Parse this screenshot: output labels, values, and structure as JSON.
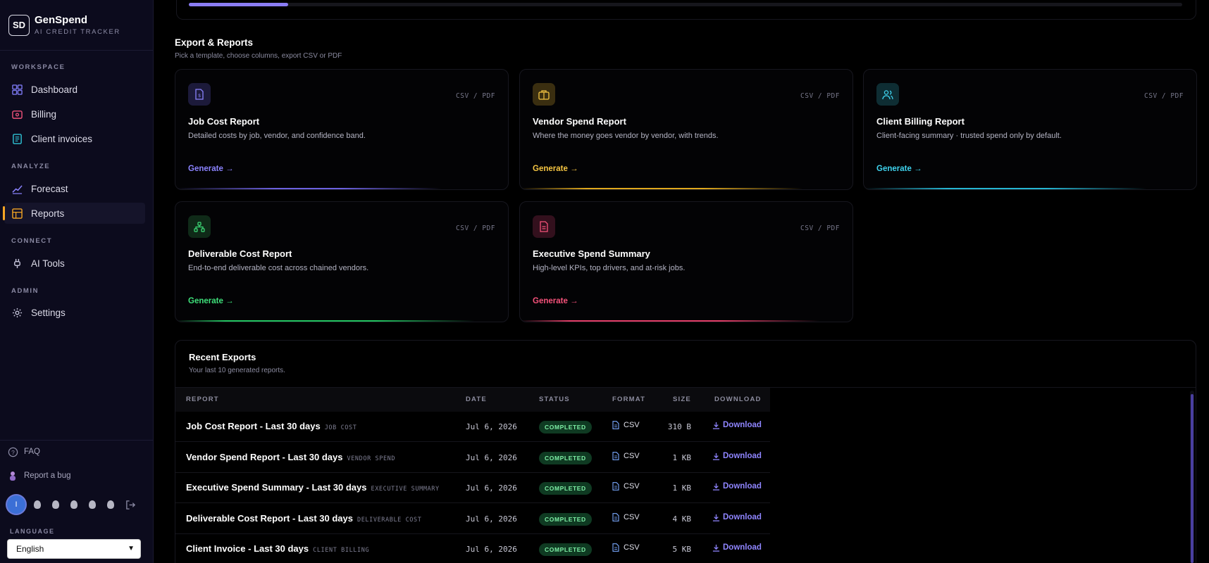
{
  "brand": {
    "logo": "SD",
    "name": "GenSpend",
    "tagline": "AI CREDIT TRACKER"
  },
  "sidebar": {
    "sections": [
      {
        "label": "WORKSPACE"
      },
      {
        "label": "ANALYZE"
      },
      {
        "label": "CONNECT"
      },
      {
        "label": "ADMIN"
      }
    ],
    "items": [
      {
        "label": "Dashboard",
        "icon": "grid-icon"
      },
      {
        "label": "Billing",
        "icon": "wallet-icon"
      },
      {
        "label": "Client invoices",
        "icon": "invoice-icon"
      },
      {
        "label": "Forecast",
        "icon": "trend-icon"
      },
      {
        "label": "Reports",
        "icon": "reports-icon",
        "active": true
      },
      {
        "label": "AI Tools",
        "icon": "plug-icon"
      },
      {
        "label": "Settings",
        "icon": "gear-icon"
      }
    ],
    "footer": {
      "faq": "FAQ",
      "bug": "Report a bug",
      "avatar_initial": "I",
      "language_label": "LANGUAGE",
      "language_value": "English"
    }
  },
  "top_progress": {
    "fraction": 0.1
  },
  "export_section": {
    "title": "Export & Reports",
    "subtitle": "Pick a template, choose columns, export CSV or PDF",
    "cards": [
      {
        "title": "Job Cost Report",
        "format": "CSV / PDF",
        "desc": "Detailed costs by job, vendor, and confidence band.",
        "action": "Generate",
        "accent": "#8b83ff"
      },
      {
        "title": "Vendor Spend Report",
        "format": "CSV / PDF",
        "desc": "Where the money goes vendor by vendor, with trends.",
        "action": "Generate",
        "accent": "#f5c542"
      },
      {
        "title": "Client Billing Report",
        "format": "CSV / PDF",
        "desc": "Client-facing summary · trusted spend only by default.",
        "action": "Generate",
        "accent": "#3fd3ee"
      },
      {
        "title": "Deliverable Cost Report",
        "format": "CSV / PDF",
        "desc": "End-to-end deliverable cost across chained vendors.",
        "action": "Generate",
        "accent": "#3ee07a"
      },
      {
        "title": "Executive Spend Summary",
        "format": "CSV / PDF",
        "desc": "High-level KPIs, top drivers, and at-risk jobs.",
        "action": "Generate",
        "accent": "#f5527a"
      }
    ]
  },
  "recent_exports": {
    "title": "Recent Exports",
    "subtitle": "Your last 10 generated reports.",
    "columns": [
      "REPORT",
      "DATE",
      "STATUS",
      "FORMAT",
      "SIZE",
      "DOWNLOAD"
    ],
    "rows": [
      {
        "name": "Job Cost Report - Last 30 days",
        "tag": "JOB COST",
        "date": "Jul 6, 2026",
        "status": "COMPLETED",
        "format": "CSV",
        "size": "310 B",
        "download": "Download"
      },
      {
        "name": "Vendor Spend Report - Last 30 days",
        "tag": "VENDOR SPEND",
        "date": "Jul 6, 2026",
        "status": "COMPLETED",
        "format": "CSV",
        "size": "1 KB",
        "download": "Download"
      },
      {
        "name": "Executive Spend Summary - Last 30 days",
        "tag": "EXECUTIVE SUMMARY",
        "date": "Jul 6, 2026",
        "status": "COMPLETED",
        "format": "CSV",
        "size": "1 KB",
        "download": "Download"
      },
      {
        "name": "Deliverable Cost Report - Last 30 days",
        "tag": "DELIVERABLE COST",
        "date": "Jul 6, 2026",
        "status": "COMPLETED",
        "format": "CSV",
        "size": "4 KB",
        "download": "Download"
      },
      {
        "name": "Client Invoice - Last 30 days",
        "tag": "CLIENT BILLING",
        "date": "Jul 6, 2026",
        "status": "COMPLETED",
        "format": "CSV",
        "size": "5 KB",
        "download": "Download"
      }
    ]
  }
}
